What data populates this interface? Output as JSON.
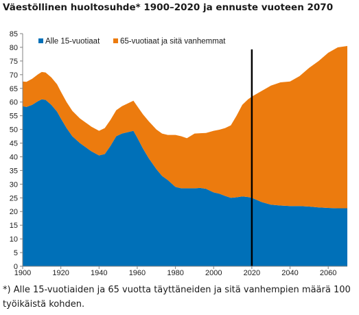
{
  "title": "Väestöllinen huoltosuhde* 1900–2020 ja ennuste vuoteen 2070",
  "footnote": "*) Alle 15-vuotiaiden ja 65 vuotta täyttäneiden ja sitä vanhempien määrä 100 työikäistä kohden.",
  "chart_data": {
    "type": "area",
    "stacked": true,
    "title": "Väestöllinen huoltosuhde* 1900–2020 ja ennuste vuoteen 2070",
    "xlabel": "",
    "ylabel": "",
    "xlim": [
      1900,
      2070
    ],
    "ylim": [
      0,
      85
    ],
    "xticks": [
      1900,
      1920,
      1940,
      1960,
      1980,
      2000,
      2020,
      2040,
      2060
    ],
    "yticks": [
      0,
      5,
      10,
      15,
      20,
      25,
      30,
      35,
      40,
      45,
      50,
      55,
      60,
      65,
      70,
      75,
      80,
      85
    ],
    "grid": false,
    "legend_position": "top-left",
    "forecast_marker_year": 2020,
    "x": [
      1900,
      1902,
      1905,
      1908,
      1910,
      1912,
      1915,
      1918,
      1920,
      1923,
      1926,
      1930,
      1933,
      1936,
      1940,
      1943,
      1946,
      1949,
      1952,
      1955,
      1958,
      1960,
      1963,
      1966,
      1970,
      1973,
      1976,
      1980,
      1983,
      1986,
      1990,
      1993,
      1996,
      2000,
      2003,
      2006,
      2009,
      2012,
      2015,
      2018,
      2020,
      2025,
      2030,
      2035,
      2040,
      2045,
      2050,
      2055,
      2060,
      2065,
      2070
    ],
    "series": [
      {
        "name": "Alle 15-vuotiaat",
        "color": "#0070b8",
        "values": [
          58.5,
          58.2,
          59.0,
          60.3,
          61.0,
          60.8,
          59.0,
          56.5,
          54.0,
          50.5,
          47.5,
          45.0,
          43.5,
          42.0,
          40.5,
          41.0,
          44.0,
          47.5,
          48.5,
          49.0,
          49.5,
          47.0,
          43.0,
          39.5,
          35.5,
          33.0,
          31.5,
          29.0,
          28.5,
          28.5,
          28.5,
          28.6,
          28.3,
          27.0,
          26.5,
          25.7,
          25.0,
          25.2,
          25.5,
          25.3,
          25.0,
          23.5,
          22.5,
          22.2,
          22.0,
          22.0,
          21.8,
          21.5,
          21.3,
          21.2,
          21.2
        ]
      },
      {
        "name": "65-vuotiaat ja sitä vanhemmat",
        "color": "#ec7b0e",
        "values": [
          9.0,
          9.2,
          9.5,
          9.8,
          10.0,
          10.0,
          10.0,
          10.0,
          9.8,
          9.5,
          9.3,
          9.0,
          9.0,
          9.0,
          9.0,
          9.5,
          9.5,
          9.5,
          10.0,
          10.5,
          11.0,
          11.5,
          12.5,
          13.5,
          14.5,
          15.5,
          16.5,
          19.0,
          19.0,
          18.3,
          20.0,
          20.0,
          20.4,
          22.5,
          23.4,
          24.8,
          26.5,
          29.8,
          33.5,
          35.7,
          37.0,
          40.5,
          43.5,
          45.0,
          45.5,
          47.5,
          50.7,
          53.5,
          56.7,
          58.8,
          59.3
        ]
      }
    ]
  }
}
